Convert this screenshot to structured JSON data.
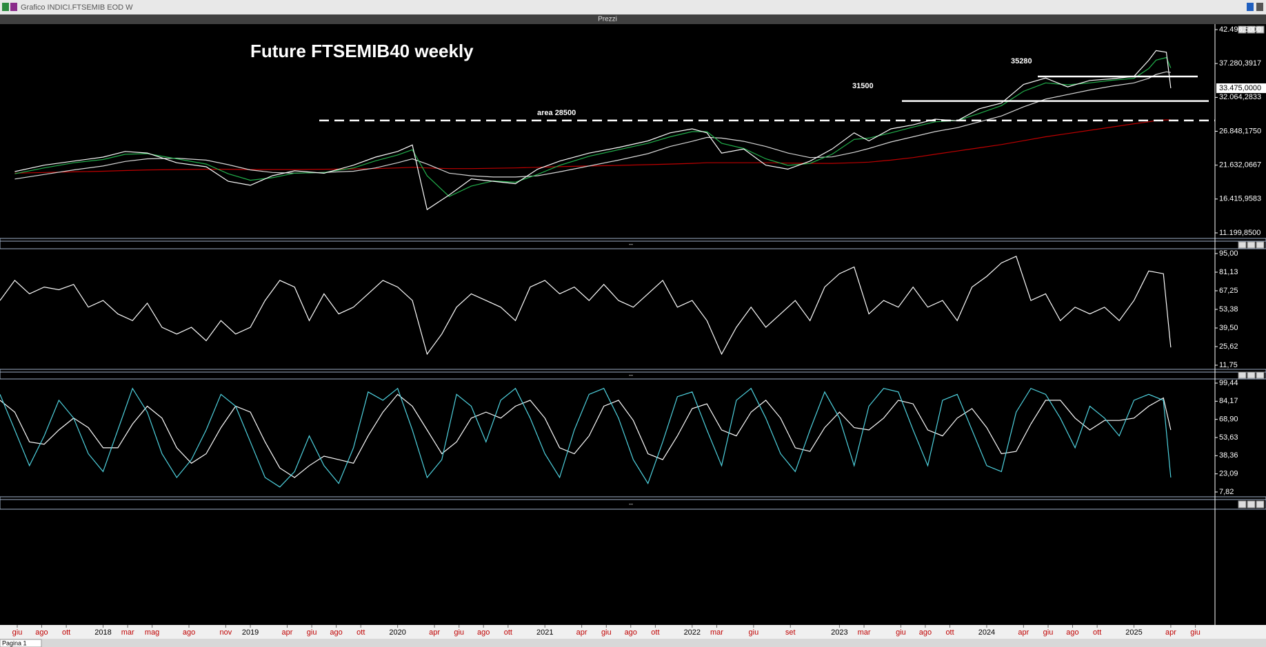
{
  "window": {
    "title": "Grafico INDICI.FTSEMIB EOD W",
    "pane": "Prezzi",
    "tab": "Pagina 1"
  },
  "chart_data": [
    {
      "type": "line",
      "title": "Future FTSEMIB40 weekly",
      "xlim": [
        2017.3,
        2025.55
      ],
      "xticks": [
        {
          "value": 2017.417,
          "label": "giu"
        },
        {
          "value": 2017.583,
          "label": "ago"
        },
        {
          "value": 2017.75,
          "label": "ott"
        },
        2018,
        {
          "value": 2018.167,
          "label": "mar"
        },
        {
          "value": 2018.333,
          "label": "mag"
        },
        {
          "value": 2018.583,
          "label": "ago"
        },
        {
          "value": 2018.833,
          "label": "nov"
        },
        2019,
        {
          "value": 2019.25,
          "label": "apr"
        },
        {
          "value": 2019.417,
          "label": "giu"
        },
        {
          "value": 2019.583,
          "label": "ago"
        },
        {
          "value": 2019.75,
          "label": "ott"
        },
        2020,
        {
          "value": 2020.25,
          "label": "apr"
        },
        {
          "value": 2020.417,
          "label": "giu"
        },
        {
          "value": 2020.583,
          "label": "ago"
        },
        {
          "value": 2020.75,
          "label": "ott"
        },
        2021,
        {
          "value": 2021.25,
          "label": "apr"
        },
        {
          "value": 2021.417,
          "label": "giu"
        },
        {
          "value": 2021.583,
          "label": "ago"
        },
        {
          "value": 2021.75,
          "label": "ott"
        },
        2022,
        {
          "value": 2022.167,
          "label": "mar"
        },
        {
          "value": 2022.417,
          "label": "giu"
        },
        {
          "value": 2022.667,
          "label": "set"
        },
        2023,
        {
          "value": 2023.167,
          "label": "mar"
        },
        {
          "value": 2023.417,
          "label": "giu"
        },
        {
          "value": 2023.583,
          "label": "ago"
        },
        {
          "value": 2023.75,
          "label": "ott"
        },
        2024,
        {
          "value": 2024.25,
          "label": "apr"
        },
        {
          "value": 2024.417,
          "label": "giu"
        },
        {
          "value": 2024.583,
          "label": "ago"
        },
        {
          "value": 2024.75,
          "label": "ott"
        },
        2025,
        {
          "value": 2025.25,
          "label": "apr"
        },
        {
          "value": 2025.417,
          "label": "giu"
        }
      ],
      "ylim": [
        11199.85,
        42496.5
      ],
      "yticks": [
        {
          "value": 11199.85,
          "label": "11.199,8500"
        },
        {
          "value": 16415.9583,
          "label": "16.415,9583"
        },
        {
          "value": 21632.0667,
          "label": "21.632,0667"
        },
        {
          "value": 26848.175,
          "label": "26.848,1750"
        },
        {
          "value": 32064.2833,
          "label": "32.064,2833"
        },
        {
          "value": 37280.3917,
          "label": "37.280,3917"
        },
        {
          "value": 42496.5,
          "label": "42.496,5000"
        }
      ],
      "last_price": {
        "value": 33475,
        "label": "33.475,0000"
      },
      "hlines": [
        {
          "value": 35280,
          "style": "solid"
        },
        {
          "value": 31500,
          "style": "solid"
        },
        {
          "value": 28500,
          "style": "dashed",
          "label": "area 28500"
        }
      ],
      "x": [
        2017.4,
        2017.6,
        2017.8,
        2018.0,
        2018.15,
        2018.3,
        2018.5,
        2018.7,
        2018.85,
        2019.0,
        2019.15,
        2019.3,
        2019.5,
        2019.7,
        2019.85,
        2020.0,
        2020.1,
        2020.2,
        2020.35,
        2020.5,
        2020.65,
        2020.8,
        2020.95,
        2021.1,
        2021.3,
        2021.5,
        2021.7,
        2021.85,
        2022.0,
        2022.1,
        2022.2,
        2022.35,
        2022.5,
        2022.65,
        2022.8,
        2022.95,
        2023.1,
        2023.2,
        2023.35,
        2023.5,
        2023.65,
        2023.8,
        2023.95,
        2024.1,
        2024.25,
        2024.4,
        2024.55,
        2024.7,
        2024.85,
        2025.0,
        2025.1,
        2025.15,
        2025.22,
        2025.25
      ],
      "series": [
        {
          "color": "#c00000",
          "values": [
            20400,
            20500,
            20600,
            20700,
            20800,
            20900,
            20950,
            21000,
            21000,
            20950,
            20950,
            20950,
            21000,
            21050,
            21100,
            21200,
            21300,
            21200,
            21100,
            21100,
            21150,
            21200,
            21300,
            21400,
            21500,
            21600,
            21700,
            21800,
            21900,
            22000,
            22000,
            22000,
            22000,
            21950,
            21900,
            21900,
            22000,
            22100,
            22400,
            22800,
            23300,
            23800,
            24300,
            24800,
            25400,
            26000,
            26500,
            27000,
            27500,
            28000,
            28300,
            28500,
            28600,
            28600
          ]
        },
        {
          "color": "#d9d9d9",
          "values": [
            19500,
            20200,
            20900,
            21500,
            22200,
            22600,
            22700,
            22400,
            21700,
            20900,
            20500,
            20400,
            20500,
            20700,
            21200,
            22000,
            22600,
            21800,
            20400,
            20000,
            19800,
            19800,
            20000,
            20600,
            21500,
            22400,
            23400,
            24500,
            25300,
            25900,
            25800,
            25300,
            24500,
            23500,
            22800,
            22900,
            23600,
            24200,
            25200,
            26000,
            26800,
            27400,
            28300,
            29200,
            30600,
            31800,
            32500,
            33200,
            33800,
            34300,
            35000,
            35600,
            36000,
            35900
          ]
        },
        {
          "color": "#22b14c",
          "values": [
            20300,
            21200,
            22000,
            22500,
            23300,
            23400,
            22600,
            21800,
            20300,
            19300,
            19700,
            20400,
            20500,
            21200,
            22300,
            23200,
            24000,
            20000,
            16800,
            18400,
            19200,
            19000,
            20200,
            21600,
            23000,
            24000,
            25000,
            26000,
            26800,
            26800,
            25000,
            24200,
            22600,
            21600,
            21900,
            23300,
            25600,
            25800,
            26600,
            27500,
            28300,
            28500,
            29600,
            30800,
            33000,
            34300,
            34000,
            34300,
            34700,
            35000,
            36500,
            37800,
            38200,
            36600
          ]
        },
        {
          "color": "#ffffff",
          "values": [
            20640,
            21630,
            22250,
            22870,
            23740,
            23500,
            22000,
            21380,
            19150,
            18530,
            20010,
            20760,
            20390,
            21630,
            22870,
            23740,
            24740,
            14800,
            17040,
            19520,
            19150,
            18770,
            21010,
            22250,
            23490,
            24360,
            25360,
            26600,
            27220,
            26600,
            23490,
            24110,
            21630,
            21010,
            22250,
            24110,
            26600,
            25360,
            27220,
            27840,
            28710,
            28460,
            30320,
            31190,
            34050,
            35040,
            33680,
            34670,
            34920,
            35290,
            37780,
            39270,
            39020,
            33475
          ]
        }
      ]
    },
    {
      "type": "line",
      "ylim": [
        11.75,
        95
      ],
      "yticks": [
        {
          "value": 11.75,
          "label": "11,75"
        },
        {
          "value": 25.62,
          "label": "25,62"
        },
        {
          "value": 39.5,
          "label": "39,50"
        },
        {
          "value": 53.38,
          "label": "53,38"
        },
        {
          "value": 67.25,
          "label": "67,25"
        },
        {
          "value": 81.13,
          "label": "81,13"
        },
        {
          "value": 95,
          "label": "95,00"
        }
      ],
      "x": [
        2017.3,
        2017.4,
        2017.5,
        2017.6,
        2017.7,
        2017.8,
        2017.9,
        2018,
        2018.1,
        2018.2,
        2018.3,
        2018.4,
        2018.5,
        2018.6,
        2018.7,
        2018.8,
        2018.9,
        2019,
        2019.1,
        2019.2,
        2019.3,
        2019.4,
        2019.5,
        2019.6,
        2019.7,
        2019.8,
        2019.9,
        2020,
        2020.1,
        2020.2,
        2020.3,
        2020.4,
        2020.5,
        2020.6,
        2020.7,
        2020.8,
        2020.9,
        2021,
        2021.1,
        2021.2,
        2021.3,
        2021.4,
        2021.5,
        2021.6,
        2021.7,
        2021.8,
        2021.9,
        2022,
        2022.1,
        2022.2,
        2022.3,
        2022.4,
        2022.5,
        2022.6,
        2022.7,
        2022.8,
        2022.9,
        2023,
        2023.1,
        2023.2,
        2023.3,
        2023.4,
        2023.5,
        2023.6,
        2023.7,
        2023.8,
        2023.9,
        2024,
        2024.1,
        2024.2,
        2024.3,
        2024.4,
        2024.5,
        2024.6,
        2024.7,
        2024.8,
        2024.9,
        2025,
        2025.1,
        2025.2,
        2025.25
      ],
      "series": [
        {
          "color": "#ffffff",
          "values": [
            60,
            75,
            65,
            70,
            68,
            72,
            55,
            60,
            50,
            45,
            58,
            40,
            35,
            40,
            30,
            45,
            35,
            40,
            60,
            75,
            70,
            45,
            65,
            50,
            55,
            65,
            75,
            70,
            60,
            20,
            35,
            55,
            65,
            60,
            55,
            45,
            70,
            75,
            65,
            70,
            60,
            72,
            60,
            55,
            65,
            75,
            55,
            60,
            45,
            20,
            40,
            55,
            40,
            50,
            60,
            45,
            70,
            80,
            85,
            50,
            60,
            55,
            70,
            55,
            60,
            45,
            70,
            78,
            88,
            93,
            60,
            65,
            45,
            55,
            50,
            55,
            45,
            60,
            82,
            80,
            25
          ]
        }
      ]
    },
    {
      "type": "line",
      "ylim": [
        7.82,
        99.44
      ],
      "yticks": [
        {
          "value": 7.82,
          "label": "7,82"
        },
        {
          "value": 23.09,
          "label": "23,09"
        },
        {
          "value": 38.36,
          "label": "38,36"
        },
        {
          "value": 53.63,
          "label": "53,63"
        },
        {
          "value": 68.9,
          "label": "68,90"
        },
        {
          "value": 84.17,
          "label": "84,17"
        },
        {
          "value": 99.44,
          "label": "99,44"
        }
      ],
      "x": [
        2017.3,
        2017.4,
        2017.5,
        2017.6,
        2017.7,
        2017.8,
        2017.9,
        2018,
        2018.1,
        2018.2,
        2018.3,
        2018.4,
        2018.5,
        2018.6,
        2018.7,
        2018.8,
        2018.9,
        2019,
        2019.1,
        2019.2,
        2019.3,
        2019.4,
        2019.5,
        2019.6,
        2019.7,
        2019.8,
        2019.9,
        2020,
        2020.1,
        2020.2,
        2020.3,
        2020.4,
        2020.5,
        2020.6,
        2020.7,
        2020.8,
        2020.9,
        2021,
        2021.1,
        2021.2,
        2021.3,
        2021.4,
        2021.5,
        2021.6,
        2021.7,
        2021.8,
        2021.9,
        2022,
        2022.1,
        2022.2,
        2022.3,
        2022.4,
        2022.5,
        2022.6,
        2022.7,
        2022.8,
        2022.9,
        2023,
        2023.1,
        2023.2,
        2023.3,
        2023.4,
        2023.5,
        2023.6,
        2023.7,
        2023.8,
        2023.9,
        2024,
        2024.1,
        2024.2,
        2024.3,
        2024.4,
        2024.5,
        2024.6,
        2024.7,
        2024.8,
        2024.9,
        2025,
        2025.1,
        2025.2,
        2025.25
      ],
      "series": [
        {
          "color": "#ffffff",
          "values": [
            85,
            75,
            50,
            48,
            60,
            70,
            62,
            45,
            45,
            65,
            80,
            70,
            45,
            32,
            40,
            62,
            80,
            75,
            50,
            28,
            20,
            30,
            38,
            35,
            32,
            55,
            75,
            90,
            80,
            60,
            40,
            50,
            70,
            75,
            70,
            80,
            85,
            70,
            45,
            40,
            55,
            80,
            85,
            68,
            40,
            35,
            55,
            78,
            82,
            60,
            55,
            75,
            85,
            70,
            45,
            42,
            62,
            75,
            62,
            60,
            70,
            85,
            82,
            60,
            55,
            70,
            78,
            62,
            40,
            42,
            65,
            85,
            85,
            70,
            60,
            68,
            68,
            70,
            80,
            87,
            60
          ]
        },
        {
          "color": "#4fd3e0",
          "values": [
            90,
            60,
            30,
            55,
            85,
            70,
            40,
            25,
            60,
            95,
            75,
            40,
            20,
            35,
            60,
            90,
            80,
            50,
            20,
            12,
            25,
            55,
            30,
            15,
            45,
            92,
            85,
            95,
            60,
            20,
            35,
            90,
            80,
            50,
            85,
            95,
            70,
            40,
            20,
            60,
            90,
            95,
            70,
            35,
            15,
            50,
            88,
            92,
            60,
            30,
            85,
            95,
            70,
            40,
            25,
            60,
            92,
            70,
            30,
            80,
            95,
            92,
            60,
            30,
            85,
            90,
            60,
            30,
            25,
            75,
            95,
            90,
            70,
            45,
            80,
            70,
            55,
            85,
            90,
            85,
            20
          ]
        }
      ]
    }
  ]
}
